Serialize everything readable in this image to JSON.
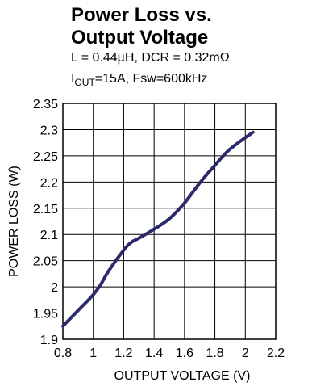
{
  "chart_data": {
    "type": "line",
    "title_line1": "Power Loss vs.",
    "title_line2": "Output Voltage",
    "subtitle_line1": "L = 0.44µH, DCR = 0.32mΩ",
    "subtitle_line2_prefix": "I",
    "subtitle_line2_sub": "OUT",
    "subtitle_line2_rest": "=15A, Fsw=600kHz",
    "xlabel": "OUTPUT VOLTAGE (V)",
    "ylabel": "POWER LOSS (W)",
    "xlim": [
      0.8,
      2.2
    ],
    "ylim": [
      1.9,
      2.35
    ],
    "x_ticks": [
      "0.8",
      "1",
      "1.2",
      "1.4",
      "1.6",
      "1.8",
      "2",
      "2.2"
    ],
    "y_ticks": [
      "1.9",
      "1.95",
      "2",
      "2.05",
      "2.1",
      "2.15",
      "2.2",
      "2.25",
      "2.3",
      "2.35"
    ],
    "grid": true,
    "series": [
      {
        "color": "#2b2b6b",
        "x": [
          0.8,
          0.9,
          1.0,
          1.05,
          1.1,
          1.2,
          1.25,
          1.3,
          1.4,
          1.5,
          1.6,
          1.7,
          1.8,
          1.9,
          2.05
        ],
        "y": [
          1.925,
          1.955,
          1.985,
          2.005,
          2.03,
          2.07,
          2.085,
          2.093,
          2.11,
          2.13,
          2.16,
          2.198,
          2.232,
          2.263,
          2.295
        ]
      }
    ]
  }
}
